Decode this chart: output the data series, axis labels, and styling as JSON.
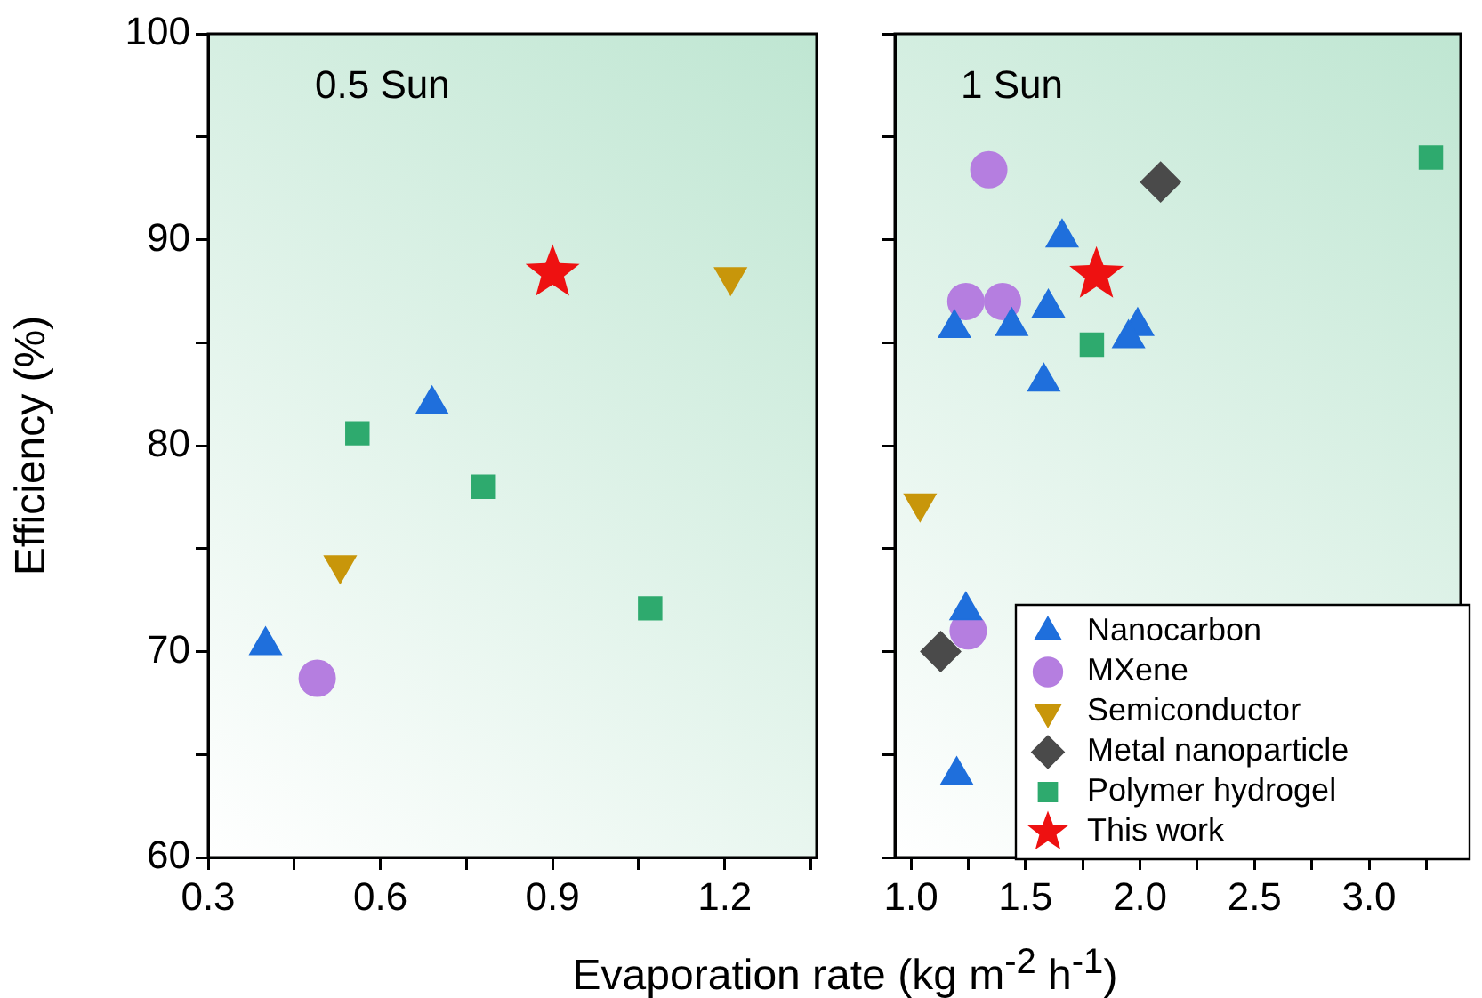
{
  "chart_data": [
    {
      "type": "scatter",
      "ylabel": "Efficiency (%)",
      "xlabel": "Evaporation rate (kg m$^{-2}$ h$^{-1}$)",
      "annotations": [
        "0.5 Sun"
      ],
      "xlim": [
        0.3,
        1.36
      ],
      "xticks": [
        0.3,
        {
          "value": 0.45,
          "label": null
        },
        0.6,
        {
          "value": 0.75,
          "label": null
        },
        0.9,
        {
          "value": 1.05,
          "label": null
        },
        1.2,
        {
          "value": 1.35,
          "label": null
        }
      ],
      "ylim": [
        60,
        100
      ],
      "yticks": [
        60,
        {
          "value": 65,
          "label": null
        },
        70,
        {
          "value": 75,
          "label": null
        },
        80,
        {
          "value": 85,
          "label": null
        },
        90,
        {
          "value": 95,
          "label": null
        },
        100
      ],
      "grid": false,
      "legend": false,
      "series": [
        {
          "color": "#1f6fdc",
          "marker": "triangle",
          "x": [
            0.69,
            0.4
          ],
          "values": [
            82.0,
            70.3
          ]
        },
        {
          "color": "#b57ee0",
          "marker": "circle",
          "x": [
            0.49
          ],
          "values": [
            68.7
          ]
        },
        {
          "color": "#c8960a",
          "marker": "triangle-down",
          "x": [
            0.53,
            1.21
          ],
          "values": [
            74.2,
            88.2
          ]
        },
        {
          "color": "#2eaa6e",
          "marker": "square",
          "x": [
            0.56,
            0.78,
            1.07
          ],
          "values": [
            80.6,
            78.0,
            72.1
          ]
        },
        {
          "color": "#ee1111",
          "marker": "star",
          "x": [
            0.9
          ],
          "values": [
            88.4
          ]
        }
      ]
    },
    {
      "type": "scatter",
      "annotations": [
        "1 Sun"
      ],
      "tick_labels": "x",
      "xlim": [
        0.93,
        3.4
      ],
      "xticks": [
        {
          "value": 1,
          "label": "1.0"
        },
        {
          "value": 1.25,
          "label": null
        },
        1.5,
        {
          "value": 1.75,
          "label": null
        },
        {
          "value": 2,
          "label": "2.0"
        },
        {
          "value": 2.25,
          "label": null
        },
        2.5,
        {
          "value": 2.75,
          "label": null
        },
        {
          "value": 3,
          "label": "3.0"
        },
        {
          "value": 3.25,
          "label": null
        }
      ],
      "ylim": [
        60,
        100
      ],
      "yticks": [
        60,
        {
          "value": 65,
          "label": null
        },
        70,
        {
          "value": 75,
          "label": null
        },
        80,
        {
          "value": 85,
          "label": null
        },
        90,
        {
          "value": 95,
          "label": null
        },
        100
      ],
      "grid": false,
      "legend": "bottom right",
      "series": [
        {
          "name": "Nanocarbon",
          "color": "#1f6fdc",
          "marker": "triangle",
          "x": [
            1.66,
            1.19,
            1.44,
            1.6,
            1.99,
            1.95,
            1.58,
            1.24,
            1.2
          ],
          "values": [
            90.1,
            85.7,
            85.8,
            86.7,
            85.8,
            85.2,
            83.1,
            72.0,
            64.0
          ]
        },
        {
          "name": "MXene",
          "color": "#b57ee0",
          "marker": "circle",
          "x": [
            1.34,
            1.24,
            1.4,
            1.25
          ],
          "values": [
            93.4,
            87.0,
            87.0,
            71.0
          ]
        },
        {
          "name": "Semiconductor",
          "color": "#c8960a",
          "marker": "triangle-down",
          "x": [
            1.04
          ],
          "values": [
            77.2
          ]
        },
        {
          "name": "Metal nanoparticle",
          "color": "#4a4a4a",
          "marker": "diamond",
          "x": [
            2.09,
            1.13
          ],
          "values": [
            92.8,
            70.0
          ]
        },
        {
          "name": "Polymer hydrogel",
          "color": "#2eaa6e",
          "marker": "square",
          "x": [
            3.27,
            1.79
          ],
          "values": [
            94.0,
            84.9
          ]
        },
        {
          "name": "This work",
          "color": "#ee1111",
          "marker": "star",
          "x": [
            1.81
          ],
          "values": [
            88.3
          ]
        }
      ]
    }
  ]
}
